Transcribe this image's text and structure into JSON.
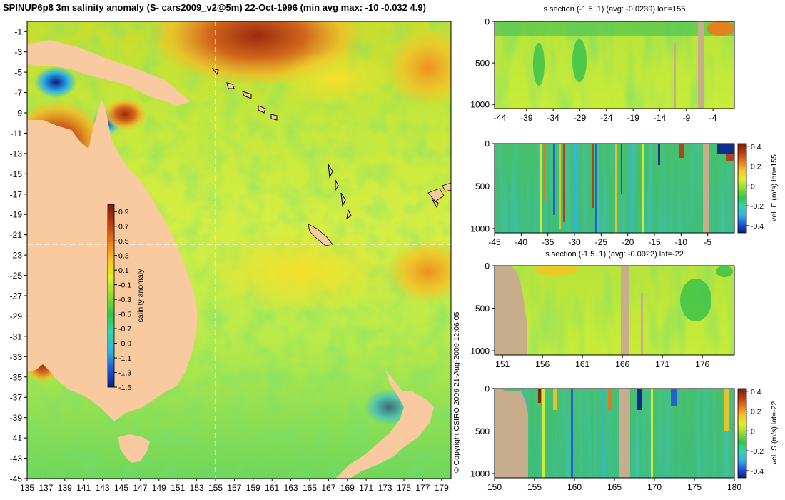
{
  "colors": {
    "land": "#f9c9a0",
    "section_mask": "#c8ad8d",
    "background": "#ffffff"
  },
  "colormap": [
    "#0c1d8c",
    "#1f5ad8",
    "#2fb5e8",
    "#2fd6a8",
    "#2fc84b",
    "#8fdd2f",
    "#dff028",
    "#f6c321",
    "#e8751c",
    "#b63a12",
    "#7d1a0a"
  ],
  "chart_data": [
    {
      "type": "heatmap",
      "id": "salinity_map",
      "title": "SPINUP6p8 3m salinity anomaly (S- cars2009_v2@5m) 22-Oct-1996 (min avg max: -10 -0.032 4.9)",
      "x_ticks": [
        135,
        137,
        139,
        141,
        143,
        145,
        147,
        149,
        151,
        153,
        155,
        157,
        159,
        161,
        163,
        165,
        167,
        169,
        171,
        173,
        175,
        177,
        179
      ],
      "y_ticks": [
        -1,
        -3,
        -5,
        -7,
        -9,
        -11,
        -13,
        -15,
        -17,
        -19,
        -21,
        -23,
        -25,
        -27,
        -29,
        -31,
        -33,
        -35,
        -37,
        -39,
        -41,
        -43,
        -45
      ],
      "xlim": [
        135,
        180
      ],
      "ylim": [
        -45,
        0
      ],
      "section_lon": 155,
      "section_lat": -22,
      "colorbar": {
        "label": "salinity anomaly",
        "ticks": [
          0.9,
          0.7,
          0.5,
          0.3,
          0.1,
          -0.1,
          -0.3,
          -0.5,
          -0.7,
          -0.9,
          -1.1,
          -1.3,
          -1.5
        ],
        "range": [
          -1.5,
          1.0
        ]
      },
      "copyright": "© Copyright CSIRO 2009   21-Aug-2009 12:06:05"
    },
    {
      "type": "heatmap",
      "id": "s_section_lon",
      "title": "s section (-1.5..1) (avg: -0.0239) lon=155",
      "x_ticks": [
        -44,
        -39,
        -34,
        -29,
        -24,
        -19,
        -14,
        -9,
        -4
      ],
      "y_ticks": [
        0,
        500,
        1000
      ],
      "xlim": [
        -45,
        0
      ],
      "ylim": [
        1050,
        0
      ]
    },
    {
      "type": "heatmap",
      "id": "vel_e_section_lon",
      "x_ticks": [
        -45,
        -40,
        -35,
        -30,
        -25,
        -20,
        -15,
        -10,
        -5
      ],
      "y_ticks": [
        0,
        500,
        1000
      ],
      "xlim": [
        -45,
        0
      ],
      "ylim": [
        1050,
        0
      ],
      "colorbar": {
        "label": "vel. E (m/s) lon=155",
        "ticks": [
          "0.4",
          "0.2",
          "0",
          "-0.2",
          "-0.4"
        ]
      }
    },
    {
      "type": "heatmap",
      "id": "s_section_lat",
      "title": "s section (-1.5..1) (avg: -0.0022) lat=-22",
      "x_ticks": [
        151,
        156,
        161,
        166,
        171,
        176
      ],
      "y_ticks": [
        0,
        500,
        1000
      ],
      "xlim": [
        150,
        180
      ],
      "ylim": [
        1050,
        0
      ]
    },
    {
      "type": "heatmap",
      "id": "vel_s_section_lat",
      "x_ticks": [
        150,
        155,
        160,
        165,
        170,
        175,
        180
      ],
      "y_ticks": [
        0,
        500,
        1000
      ],
      "xlim": [
        150,
        180
      ],
      "ylim": [
        1050,
        0
      ],
      "colorbar": {
        "label": "vel. S (m/s) lat=-22",
        "ticks": [
          "0.4",
          "0.2",
          "0",
          "-0.2",
          "-0.4"
        ]
      }
    }
  ]
}
